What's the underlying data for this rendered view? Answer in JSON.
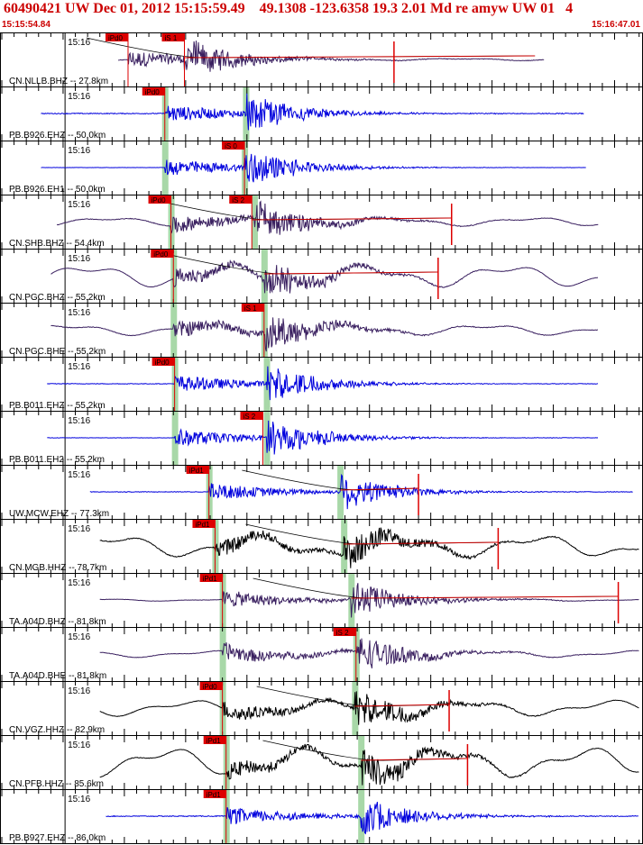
{
  "header": {
    "title": "60490421 UW Dec 01, 2012 15:15:59.49    49.1308 -123.6358 19.3 2.01 Md re amyw UW 01   4",
    "start_time": "15:15:54.84",
    "end_time": "15:16:47.01"
  },
  "colors": {
    "pick_flag": "#dd0000",
    "theoretical_window": "#a8d8a8",
    "broadband_trace": "#3a2060",
    "strainmeter_trace": "#0000dd",
    "strong_trace": "#000000",
    "coda_line": "#cc0000"
  },
  "chart_data": {
    "type": "line",
    "title": "60490421 UW Dec 01, 2012 15:15:59.49    49.1308 -123.6358 19.3 2.01 Md re amyw UW 01   4",
    "x_unit": "seconds after 15:15:54.84",
    "xlim": [
      0,
      52.17
    ],
    "minute_label": "15:16",
    "series": [
      {
        "name": "CN.NLLB.BHZ -- 27.8km",
        "color": "#3a2060",
        "start": 9.5,
        "end": 44.3,
        "noise": 0.05,
        "picks": [
          {
            "label": "iPd0",
            "t": 10.3
          },
          {
            "label": "iS 1",
            "t": 14.9
          }
        ],
        "coda": [
          14.9,
          43.5
        ],
        "spike": 32.0,
        "lf": 0.1
      },
      {
        "name": "PB.B926.EHZ -- 50.0km",
        "color": "#0000dd",
        "start": 3.2,
        "end": 47.5,
        "noise": 0.08,
        "picks": [
          {
            "label": "iPd0",
            "t": 13.3
          }
        ],
        "windows": [
          13.3,
          19.9
        ],
        "lf": 0
      },
      {
        "name": "PB.B926.EH1 -- 50.0km",
        "color": "#0000dd",
        "start": 3.2,
        "end": 47.7,
        "noise": 0.02,
        "picks": [
          {
            "label": "iS 0",
            "t": 19.8
          }
        ],
        "windows": [
          13.3,
          19.8
        ],
        "lf": 0
      },
      {
        "name": "CN.SHB.BHZ -- 54.4km",
        "color": "#3a2060",
        "start": 4.5,
        "end": 48.7,
        "noise": 0.05,
        "picks": [
          {
            "label": "iPd0",
            "t": 13.8
          },
          {
            "label": "iS 2",
            "t": 20.4
          }
        ],
        "windows": [
          13.8,
          20.6
        ],
        "coda": [
          20.4,
          36.7
        ],
        "spike": 36.7,
        "lf": 0.4
      },
      {
        "name": "CN.PGC.BHZ -- 55.2km",
        "color": "#3a2060",
        "start": 4.0,
        "end": 48.7,
        "noise": 0.03,
        "picks": [
          {
            "label": "iPd0",
            "t": 14.0
          }
        ],
        "windows": [
          14.0,
          21.4
        ],
        "coda": [
          21.4,
          35.6
        ],
        "spike": 35.6,
        "lf": 1.0
      },
      {
        "name": "CN.PGC.BHE -- 55.2km",
        "color": "#3a2060",
        "start": 4.0,
        "end": 48.7,
        "noise": 0.05,
        "picks": [
          {
            "label": "iS 1",
            "t": 21.4
          }
        ],
        "windows": [
          14.0,
          21.4
        ],
        "lf": 0.5
      },
      {
        "name": "PB.B011.EHZ -- 55.2km",
        "color": "#0000dd",
        "start": 3.7,
        "end": 48.7,
        "noise": 0.05,
        "picks": [
          {
            "label": "iPd0",
            "t": 14.1
          }
        ],
        "windows": [
          14.1,
          21.6
        ],
        "lf": 0
      },
      {
        "name": "PB.B011.EH2 -- 55.2km",
        "color": "#0000dd",
        "start": 3.7,
        "end": 48.7,
        "noise": 0.03,
        "picks": [
          {
            "label": "iS 2",
            "t": 21.3
          }
        ],
        "windows": [
          14.1,
          21.6
        ],
        "lf": 0
      },
      {
        "name": "UW.MCW.EHZ -- 77.3km",
        "color": "#0000dd",
        "start": 7.2,
        "end": 51.5,
        "noise": 0.05,
        "picks": [
          {
            "label": "iPd1",
            "t": 16.9
          }
        ],
        "windows": [
          16.9,
          27.6
        ],
        "coda": [
          27.6,
          34.0
        ],
        "spike": 34.0,
        "lf": 0
      },
      {
        "name": "CN.MGB.HHZ -- 78.7km",
        "color": "#000000",
        "start": 8.0,
        "end": 52.0,
        "noise": 0.08,
        "picks": [
          {
            "label": "iPd1",
            "t": 17.4
          }
        ],
        "windows": [
          17.4,
          27.9
        ],
        "coda": [
          27.9,
          40.5
        ],
        "spike": 40.5,
        "lf": 1.0
      },
      {
        "name": "TA.A04D.BHZ -- 81.8km",
        "color": "#3a2060",
        "start": 8.0,
        "end": 52.0,
        "noise": 0.03,
        "picks": [
          {
            "label": "iPd1",
            "t": 18.0
          }
        ],
        "windows": [
          18.0,
          28.5
        ],
        "coda": [
          28.5,
          50.3
        ],
        "spike": 50.3,
        "lf": 0.1
      },
      {
        "name": "TA.A04D.BHE -- 81.8km",
        "color": "#3a2060",
        "start": 8.0,
        "end": 52.0,
        "noise": 0.04,
        "picks": [
          {
            "label": "iS 2",
            "t": 28.9
          }
        ],
        "windows": [
          18.0,
          28.9
        ],
        "lf": 0.3
      },
      {
        "name": "CN.VGZ.HHZ -- 82.9km",
        "color": "#000000",
        "start": 8.0,
        "end": 52.0,
        "noise": 0.04,
        "picks": [
          {
            "label": "iPd0",
            "t": 18.0
          }
        ],
        "windows": [
          18.0,
          28.8
        ],
        "coda": [
          28.8,
          36.5
        ],
        "spike": 36.5,
        "lf": 0.7
      },
      {
        "name": "CN.PFB.HHZ -- 85.6km",
        "color": "#000000",
        "start": 8.0,
        "end": 52.0,
        "noise": 0.05,
        "picks": [
          {
            "label": "iPd1",
            "t": 18.3
          }
        ],
        "windows": [
          18.3,
          29.3
        ],
        "coda": [
          29.3,
          38.0
        ],
        "spike": 38.0,
        "lf": 1.3
      },
      {
        "name": "PB.B927.EHZ -- 86.0km",
        "color": "#0000dd",
        "start": 8.5,
        "end": 52.0,
        "noise": 0.08,
        "picks": [
          {
            "label": "iPd1",
            "t": 18.3
          }
        ],
        "windows": [
          18.3,
          29.3
        ],
        "lf": 0
      }
    ]
  }
}
